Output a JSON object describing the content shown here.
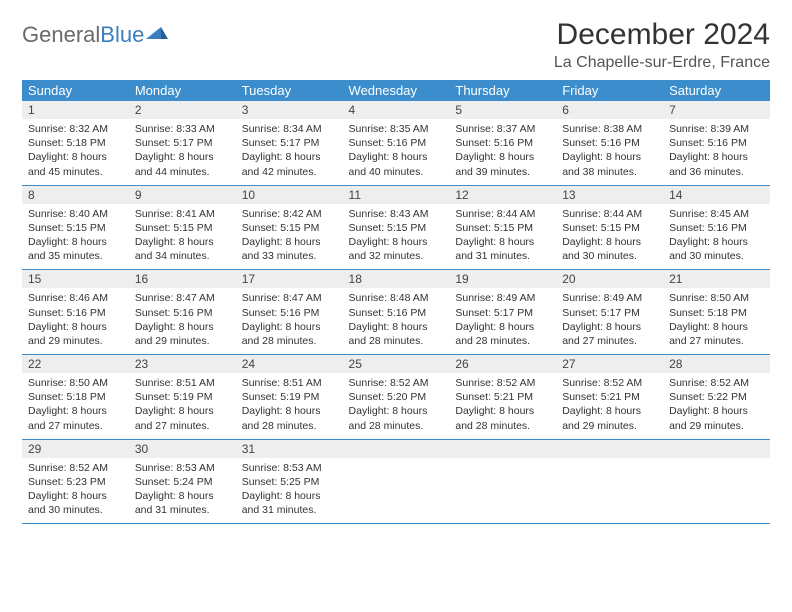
{
  "brand": {
    "part1": "General",
    "part2": "Blue"
  },
  "title": "December 2024",
  "location": "La Chapelle-sur-Erdre, France",
  "colors": {
    "header_bg": "#3c8dcc",
    "header_text": "#ffffff",
    "daynum_bg": "#eeeeee",
    "border": "#3c8dcc",
    "title_color": "#333333",
    "logo_gray": "#6a6a6a",
    "logo_blue": "#3b7fbf"
  },
  "typography": {
    "title_fontsize": 30,
    "location_fontsize": 16,
    "dayhead_fontsize": 13,
    "body_fontsize": 10.5
  },
  "dayHeaders": [
    "Sunday",
    "Monday",
    "Tuesday",
    "Wednesday",
    "Thursday",
    "Friday",
    "Saturday"
  ],
  "weeks": [
    [
      {
        "n": "1",
        "sr": "8:32 AM",
        "ss": "5:18 PM",
        "dl": "8 hours and 45 minutes."
      },
      {
        "n": "2",
        "sr": "8:33 AM",
        "ss": "5:17 PM",
        "dl": "8 hours and 44 minutes."
      },
      {
        "n": "3",
        "sr": "8:34 AM",
        "ss": "5:17 PM",
        "dl": "8 hours and 42 minutes."
      },
      {
        "n": "4",
        "sr": "8:35 AM",
        "ss": "5:16 PM",
        "dl": "8 hours and 40 minutes."
      },
      {
        "n": "5",
        "sr": "8:37 AM",
        "ss": "5:16 PM",
        "dl": "8 hours and 39 minutes."
      },
      {
        "n": "6",
        "sr": "8:38 AM",
        "ss": "5:16 PM",
        "dl": "8 hours and 38 minutes."
      },
      {
        "n": "7",
        "sr": "8:39 AM",
        "ss": "5:16 PM",
        "dl": "8 hours and 36 minutes."
      }
    ],
    [
      {
        "n": "8",
        "sr": "8:40 AM",
        "ss": "5:15 PM",
        "dl": "8 hours and 35 minutes."
      },
      {
        "n": "9",
        "sr": "8:41 AM",
        "ss": "5:15 PM",
        "dl": "8 hours and 34 minutes."
      },
      {
        "n": "10",
        "sr": "8:42 AM",
        "ss": "5:15 PM",
        "dl": "8 hours and 33 minutes."
      },
      {
        "n": "11",
        "sr": "8:43 AM",
        "ss": "5:15 PM",
        "dl": "8 hours and 32 minutes."
      },
      {
        "n": "12",
        "sr": "8:44 AM",
        "ss": "5:15 PM",
        "dl": "8 hours and 31 minutes."
      },
      {
        "n": "13",
        "sr": "8:44 AM",
        "ss": "5:15 PM",
        "dl": "8 hours and 30 minutes."
      },
      {
        "n": "14",
        "sr": "8:45 AM",
        "ss": "5:16 PM",
        "dl": "8 hours and 30 minutes."
      }
    ],
    [
      {
        "n": "15",
        "sr": "8:46 AM",
        "ss": "5:16 PM",
        "dl": "8 hours and 29 minutes."
      },
      {
        "n": "16",
        "sr": "8:47 AM",
        "ss": "5:16 PM",
        "dl": "8 hours and 29 minutes."
      },
      {
        "n": "17",
        "sr": "8:47 AM",
        "ss": "5:16 PM",
        "dl": "8 hours and 28 minutes."
      },
      {
        "n": "18",
        "sr": "8:48 AM",
        "ss": "5:16 PM",
        "dl": "8 hours and 28 minutes."
      },
      {
        "n": "19",
        "sr": "8:49 AM",
        "ss": "5:17 PM",
        "dl": "8 hours and 28 minutes."
      },
      {
        "n": "20",
        "sr": "8:49 AM",
        "ss": "5:17 PM",
        "dl": "8 hours and 27 minutes."
      },
      {
        "n": "21",
        "sr": "8:50 AM",
        "ss": "5:18 PM",
        "dl": "8 hours and 27 minutes."
      }
    ],
    [
      {
        "n": "22",
        "sr": "8:50 AM",
        "ss": "5:18 PM",
        "dl": "8 hours and 27 minutes."
      },
      {
        "n": "23",
        "sr": "8:51 AM",
        "ss": "5:19 PM",
        "dl": "8 hours and 27 minutes."
      },
      {
        "n": "24",
        "sr": "8:51 AM",
        "ss": "5:19 PM",
        "dl": "8 hours and 28 minutes."
      },
      {
        "n": "25",
        "sr": "8:52 AM",
        "ss": "5:20 PM",
        "dl": "8 hours and 28 minutes."
      },
      {
        "n": "26",
        "sr": "8:52 AM",
        "ss": "5:21 PM",
        "dl": "8 hours and 28 minutes."
      },
      {
        "n": "27",
        "sr": "8:52 AM",
        "ss": "5:21 PM",
        "dl": "8 hours and 29 minutes."
      },
      {
        "n": "28",
        "sr": "8:52 AM",
        "ss": "5:22 PM",
        "dl": "8 hours and 29 minutes."
      }
    ],
    [
      {
        "n": "29",
        "sr": "8:52 AM",
        "ss": "5:23 PM",
        "dl": "8 hours and 30 minutes."
      },
      {
        "n": "30",
        "sr": "8:53 AM",
        "ss": "5:24 PM",
        "dl": "8 hours and 31 minutes."
      },
      {
        "n": "31",
        "sr": "8:53 AM",
        "ss": "5:25 PM",
        "dl": "8 hours and 31 minutes."
      },
      null,
      null,
      null,
      null
    ]
  ],
  "labels": {
    "sunrise": "Sunrise:",
    "sunset": "Sunset:",
    "daylight": "Daylight:"
  }
}
